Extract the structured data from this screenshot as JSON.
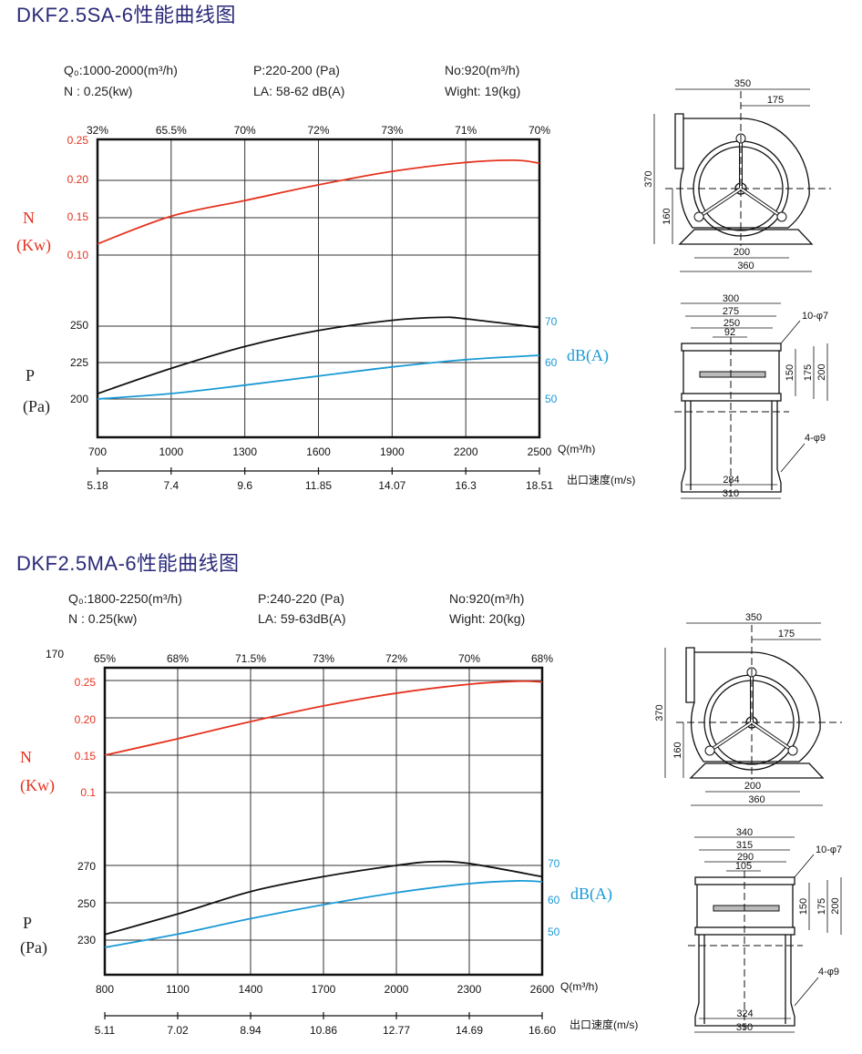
{
  "charts_colors": {
    "power": "#e5331f",
    "pressure": "#111111",
    "noise": "#1a9ad6"
  },
  "sections": [
    {
      "title": "DKF2.5SA-6性能曲线图",
      "specs": {
        "q": "Q₀:1000-2000(m³/h)",
        "p": "P:220-200 (Pa)",
        "no": "No:920(m³/h)",
        "n": "N : 0.25(kw)",
        "la": "LA: 58-62 dB(A)",
        "weight": "Wight: 19(kg)"
      },
      "stray": "",
      "drawing": {
        "side": [
          "350",
          "175",
          "370",
          "160",
          "200",
          "360"
        ],
        "front": [
          "300",
          "275",
          "250",
          "92",
          "150",
          "175",
          "200",
          "284",
          "310"
        ],
        "holes_top": "10-φ7",
        "holes_bottom": "4-φ9"
      }
    },
    {
      "title": "DKF2.5MA-6性能曲线图",
      "specs": {
        "q": "Q₀:1800-2250(m³/h)",
        "p": "P:240-220 (Pa)",
        "no": "No:920(m³/h)",
        "n": "N : 0.25(kw)",
        "la": "LA: 59-63dB(A)",
        "weight": "Wight: 20(kg)"
      },
      "stray": "170",
      "drawing": {
        "side": [
          "350",
          "175",
          "370",
          "160",
          "200",
          "360"
        ],
        "front": [
          "340",
          "315",
          "290",
          "105",
          "150",
          "175",
          "200",
          "324",
          "350"
        ],
        "holes_top": "10-φ7",
        "holes_bottom": "4-φ9"
      }
    }
  ],
  "chart_data": [
    {
      "type": "line",
      "title": "DKF2.5SA-6性能曲线图",
      "xlabel": "Q(m³/h)",
      "x2label": "出口速度(m/s)",
      "xlim": [
        700,
        2500
      ],
      "x_ticks": [
        "700",
        "1000",
        "1300",
        "1600",
        "1900",
        "2200",
        "2500"
      ],
      "velocity_ticks": [
        "5.18",
        "7.4",
        "9.6",
        "11.85",
        "14.07",
        "16.3",
        "18.51"
      ],
      "efficiency_labels": [
        "32%",
        "65.5%",
        "70%",
        "72%",
        "73%",
        "71%",
        "70%"
      ],
      "n_axis": {
        "label1": "N",
        "label2": "(Kw)",
        "ticks": [
          "0.25",
          "0.20",
          "0.15",
          "0.10"
        ]
      },
      "p_axis": {
        "label1": "P",
        "label2": "(Pa)",
        "ticks": [
          "250",
          "225",
          "200"
        ]
      },
      "db_axis": {
        "label": "dB(A)",
        "ticks": [
          "70",
          "60",
          "50"
        ]
      },
      "series": [
        {
          "name": "N (Kw)",
          "x": [
            700,
            1000,
            1300,
            1600,
            1900,
            2200,
            2400,
            2500
          ],
          "y": [
            0.115,
            0.152,
            0.173,
            0.194,
            0.212,
            0.224,
            0.227,
            0.223
          ]
        },
        {
          "name": "P (Pa)",
          "x": [
            700,
            1000,
            1300,
            1600,
            1900,
            2100,
            2200,
            2500
          ],
          "y": [
            203.7,
            221,
            236,
            247,
            254,
            256,
            255,
            249
          ]
        },
        {
          "name": "dB(A)",
          "x": [
            700,
            1000,
            1300,
            1600,
            1900,
            2200,
            2500
          ],
          "y": [
            50,
            51.5,
            53.8,
            56.3,
            58.8,
            60.8,
            62
          ]
        }
      ]
    },
    {
      "type": "line",
      "title": "DKF2.5MA-6性能曲线图",
      "xlabel": "Q(m³/h)",
      "x2label": "出口速度(m/s)",
      "xlim": [
        800,
        2600
      ],
      "x_ticks": [
        "800",
        "1100",
        "1400",
        "1700",
        "2000",
        "2300",
        "2600"
      ],
      "velocity_ticks": [
        "5.11",
        "7.02",
        "8.94",
        "10.86",
        "12.77",
        "14.69",
        "16.60"
      ],
      "efficiency_labels": [
        "65%",
        "68%",
        "71.5%",
        "73%",
        "72%",
        "70%",
        "68%"
      ],
      "n_axis": {
        "label1": "N",
        "label2": "(Kw)",
        "ticks": [
          "0.25",
          "0.20",
          "0.15",
          "0.1"
        ]
      },
      "p_axis": {
        "label1": "P",
        "label2": "(Pa)",
        "ticks": [
          "270",
          "250",
          "230"
        ]
      },
      "db_axis": {
        "label": "dB(A)",
        "ticks": [
          "70",
          "60",
          "50"
        ]
      },
      "series": [
        {
          "name": "N (Kw)",
          "x": [
            800,
            1100,
            1400,
            1700,
            2000,
            2300,
            2500,
            2600
          ],
          "y": [
            0.15,
            0.172,
            0.195,
            0.216,
            0.233,
            0.245,
            0.249,
            0.248
          ]
        },
        {
          "name": "P (Pa)",
          "x": [
            800,
            1100,
            1400,
            1700,
            2000,
            2150,
            2300,
            2600
          ],
          "y": [
            233,
            244,
            256,
            264,
            270,
            272,
            271,
            264
          ]
        },
        {
          "name": "dB(A)",
          "x": [
            800,
            1100,
            1400,
            1700,
            2000,
            2300,
            2500,
            2600
          ],
          "y": [
            44.7,
            49,
            54,
            58.5,
            62.4,
            65.3,
            66.2,
            65.9
          ]
        }
      ]
    }
  ]
}
